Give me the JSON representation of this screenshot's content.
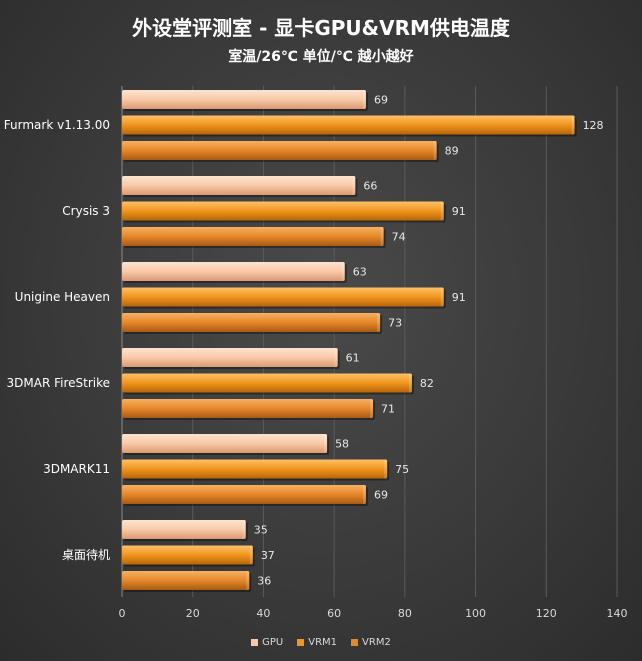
{
  "chart_data": {
    "type": "bar",
    "orientation": "horizontal",
    "title": "外设堂评测室 -   显卡GPU&VRM供电温度",
    "subtitle": "室温/26℃   单位/℃   越小越好",
    "categories": [
      "Furmark v1.13.00",
      "Crysis 3",
      "Unigine   Heaven",
      "3DMAR FireStrike",
      "3DMARK11",
      "桌面待机"
    ],
    "series": [
      {
        "name": "GPU",
        "color": "#f9c9a8",
        "values": [
          69,
          66,
          63,
          61,
          58,
          35
        ]
      },
      {
        "name": "VRM1",
        "color": "#f0961e",
        "values": [
          128,
          91,
          91,
          82,
          75,
          37
        ]
      },
      {
        "name": "VRM2",
        "color": "#e5882a",
        "values": [
          89,
          74,
          73,
          71,
          69,
          36
        ]
      }
    ],
    "xlim": [
      0,
      140
    ],
    "xticks": [
      "0",
      "20",
      "40",
      "60",
      "80",
      "100",
      "120",
      "140"
    ],
    "grid": true,
    "legend_position": "bottom"
  }
}
